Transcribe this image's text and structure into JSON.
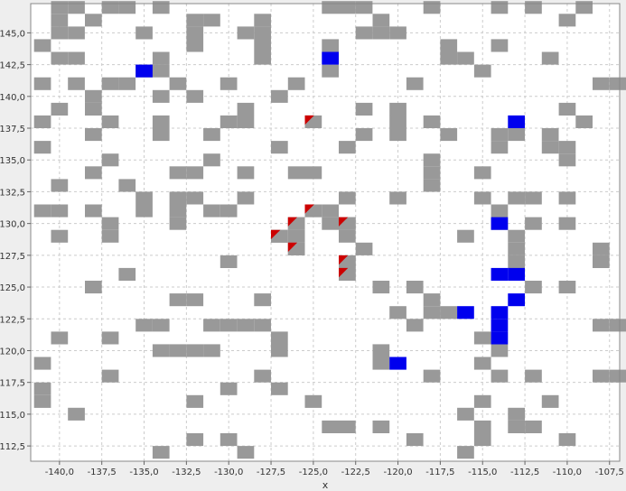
{
  "chart_data": {
    "type": "heatmap",
    "xlabel": "x",
    "ylabel": "",
    "xlim": [
      -141.7,
      -106.9
    ],
    "ylim": [
      111.3,
      147.3
    ],
    "cell_size": 1,
    "x_ticks": [
      "-140,0",
      "-137,5",
      "-135,0",
      "-132,5",
      "-130,0",
      "-127,5",
      "-125,0",
      "-122,5",
      "-120,0",
      "-117,5",
      "-115,0",
      "-112,5",
      "-110,0",
      "-107,5"
    ],
    "y_ticks": [
      "112,5",
      "115,0",
      "117,5",
      "120,0",
      "122,5",
      "125,0",
      "127,5",
      "130,0",
      "132,5",
      "135,0",
      "137,5",
      "140,0",
      "142,5",
      "145,0"
    ],
    "grid": true,
    "colors": {
      "obstacle": "#999999",
      "target": "#0000ee",
      "agent": "#cc0000",
      "background": "#ffffff",
      "outer": "#eeeeee",
      "grid": "#cccccc"
    },
    "obstacles": [
      [
        -140,
        147
      ],
      [
        -139,
        147
      ],
      [
        -137,
        147
      ],
      [
        -136,
        147
      ],
      [
        -134,
        147
      ],
      [
        -124,
        147
      ],
      [
        -123,
        147
      ],
      [
        -122,
        147
      ],
      [
        -118,
        147
      ],
      [
        -114,
        147
      ],
      [
        -112,
        147
      ],
      [
        -109,
        147
      ],
      [
        -140,
        146
      ],
      [
        -138,
        146
      ],
      [
        -132,
        146
      ],
      [
        -131,
        146
      ],
      [
        -128,
        146
      ],
      [
        -121,
        146
      ],
      [
        -110,
        146
      ],
      [
        -140,
        145
      ],
      [
        -139,
        145
      ],
      [
        -135,
        145
      ],
      [
        -132,
        145
      ],
      [
        -129,
        145
      ],
      [
        -128,
        145
      ],
      [
        -122,
        145
      ],
      [
        -121,
        145
      ],
      [
        -120,
        145
      ],
      [
        -141,
        144
      ],
      [
        -132,
        144
      ],
      [
        -128,
        144
      ],
      [
        -124,
        144
      ],
      [
        -117,
        144
      ],
      [
        -114,
        144
      ],
      [
        -140,
        143
      ],
      [
        -139,
        143
      ],
      [
        -134,
        143
      ],
      [
        -128,
        143
      ],
      [
        -117,
        143
      ],
      [
        -116,
        143
      ],
      [
        -111,
        143
      ],
      [
        -135,
        142
      ],
      [
        -134,
        142
      ],
      [
        -124,
        142
      ],
      [
        -115,
        142
      ],
      [
        -141,
        141
      ],
      [
        -139,
        141
      ],
      [
        -137,
        141
      ],
      [
        -136,
        141
      ],
      [
        -133,
        141
      ],
      [
        -130,
        141
      ],
      [
        -126,
        141
      ],
      [
        -119,
        141
      ],
      [
        -108,
        141
      ],
      [
        -107,
        141
      ],
      [
        -138,
        140
      ],
      [
        -134,
        140
      ],
      [
        -132,
        140
      ],
      [
        -127,
        140
      ],
      [
        -140,
        139
      ],
      [
        -138,
        139
      ],
      [
        -129,
        139
      ],
      [
        -122,
        139
      ],
      [
        -120,
        139
      ],
      [
        -110,
        139
      ],
      [
        -141,
        138
      ],
      [
        -137,
        138
      ],
      [
        -134,
        138
      ],
      [
        -130,
        138
      ],
      [
        -129,
        138
      ],
      [
        -120,
        138
      ],
      [
        -118,
        138
      ],
      [
        -109,
        138
      ],
      [
        -138,
        137
      ],
      [
        -134,
        137
      ],
      [
        -131,
        137
      ],
      [
        -122,
        137
      ],
      [
        -120,
        137
      ],
      [
        -117,
        137
      ],
      [
        -114,
        137
      ],
      [
        -113,
        137
      ],
      [
        -111,
        137
      ],
      [
        -141,
        136
      ],
      [
        -127,
        136
      ],
      [
        -123,
        136
      ],
      [
        -114,
        136
      ],
      [
        -111,
        136
      ],
      [
        -110,
        136
      ],
      [
        -137,
        135
      ],
      [
        -131,
        135
      ],
      [
        -118,
        135
      ],
      [
        -110,
        135
      ],
      [
        -138,
        134
      ],
      [
        -133,
        134
      ],
      [
        -132,
        134
      ],
      [
        -129,
        134
      ],
      [
        -126,
        134
      ],
      [
        -125,
        134
      ],
      [
        -118,
        134
      ],
      [
        -115,
        134
      ],
      [
        -140,
        133
      ],
      [
        -136,
        133
      ],
      [
        -118,
        133
      ],
      [
        -135,
        132
      ],
      [
        -133,
        132
      ],
      [
        -132,
        132
      ],
      [
        -129,
        132
      ],
      [
        -123,
        132
      ],
      [
        -120,
        132
      ],
      [
        -115,
        132
      ],
      [
        -113,
        132
      ],
      [
        -112,
        132
      ],
      [
        -110,
        132
      ],
      [
        -141,
        131
      ],
      [
        -140,
        131
      ],
      [
        -138,
        131
      ],
      [
        -135,
        131
      ],
      [
        -133,
        131
      ],
      [
        -131,
        131
      ],
      [
        -130,
        131
      ],
      [
        -125,
        131
      ],
      [
        -124,
        131
      ],
      [
        -114,
        131
      ],
      [
        -137,
        130
      ],
      [
        -133,
        130
      ],
      [
        -126,
        130
      ],
      [
        -124,
        130
      ],
      [
        -123,
        130
      ],
      [
        -114,
        130
      ],
      [
        -112,
        130
      ],
      [
        -110,
        130
      ],
      [
        -140,
        129
      ],
      [
        -137,
        129
      ],
      [
        -127,
        129
      ],
      [
        -126,
        129
      ],
      [
        -123,
        129
      ],
      [
        -116,
        129
      ],
      [
        -113,
        129
      ],
      [
        -126,
        128
      ],
      [
        -122,
        128
      ],
      [
        -113,
        128
      ],
      [
        -108,
        128
      ],
      [
        -130,
        127
      ],
      [
        -123,
        127
      ],
      [
        -113,
        127
      ],
      [
        -108,
        127
      ],
      [
        -136,
        126
      ],
      [
        -123,
        126
      ],
      [
        -138,
        125
      ],
      [
        -121,
        125
      ],
      [
        -119,
        125
      ],
      [
        -112,
        125
      ],
      [
        -110,
        125
      ],
      [
        -133,
        124
      ],
      [
        -132,
        124
      ],
      [
        -128,
        124
      ],
      [
        -118,
        124
      ],
      [
        -120,
        123
      ],
      [
        -118,
        123
      ],
      [
        -117,
        123
      ],
      [
        -135,
        122
      ],
      [
        -134,
        122
      ],
      [
        -131,
        122
      ],
      [
        -130,
        122
      ],
      [
        -129,
        122
      ],
      [
        -128,
        122
      ],
      [
        -119,
        122
      ],
      [
        -108,
        122
      ],
      [
        -107,
        122
      ],
      [
        -140,
        121
      ],
      [
        -137,
        121
      ],
      [
        -127,
        121
      ],
      [
        -115,
        121
      ],
      [
        -134,
        120
      ],
      [
        -133,
        120
      ],
      [
        -132,
        120
      ],
      [
        -131,
        120
      ],
      [
        -127,
        120
      ],
      [
        -121,
        120
      ],
      [
        -114,
        120
      ],
      [
        -141,
        119
      ],
      [
        -121,
        119
      ],
      [
        -115,
        119
      ],
      [
        -137,
        118
      ],
      [
        -128,
        118
      ],
      [
        -118,
        118
      ],
      [
        -114,
        118
      ],
      [
        -112,
        118
      ],
      [
        -108,
        118
      ],
      [
        -107,
        118
      ],
      [
        -141,
        117
      ],
      [
        -130,
        117
      ],
      [
        -127,
        117
      ],
      [
        -141,
        116
      ],
      [
        -132,
        116
      ],
      [
        -125,
        116
      ],
      [
        -115,
        116
      ],
      [
        -111,
        116
      ],
      [
        -139,
        115
      ],
      [
        -116,
        115
      ],
      [
        -113,
        115
      ],
      [
        -124,
        114
      ],
      [
        -123,
        114
      ],
      [
        -121,
        114
      ],
      [
        -115,
        114
      ],
      [
        -113,
        114
      ],
      [
        -112,
        114
      ],
      [
        -132,
        113
      ],
      [
        -130,
        113
      ],
      [
        -119,
        113
      ],
      [
        -115,
        113
      ],
      [
        -110,
        113
      ],
      [
        -134,
        112
      ],
      [
        -129,
        112
      ],
      [
        -116,
        112
      ]
    ],
    "targets": [
      [
        -135,
        142
      ],
      [
        -124,
        143
      ],
      [
        -113,
        138
      ],
      [
        -114,
        130
      ],
      [
        -114,
        126
      ],
      [
        -113,
        126
      ],
      [
        -113,
        124
      ],
      [
        -116,
        123
      ],
      [
        -114,
        123
      ],
      [
        -114,
        122
      ],
      [
        -114,
        121
      ],
      [
        -120,
        119
      ]
    ],
    "agents": [
      [
        -125,
        138
      ],
      [
        -127,
        129
      ],
      [
        -126,
        130
      ],
      [
        -125,
        131
      ],
      [
        -123,
        130
      ],
      [
        -126,
        128
      ],
      [
        -123,
        127
      ],
      [
        -123,
        126
      ]
    ]
  }
}
